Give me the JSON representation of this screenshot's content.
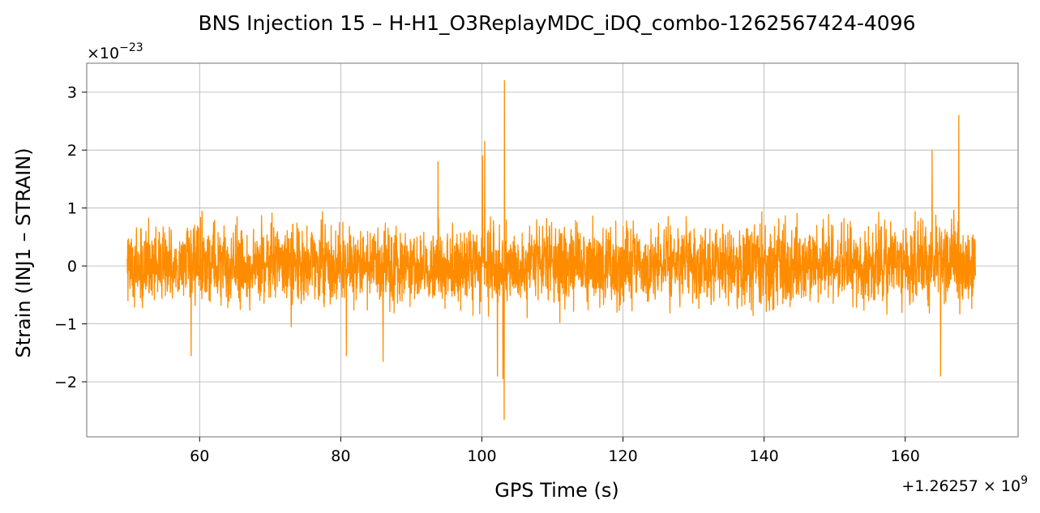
{
  "chart_data": {
    "type": "line",
    "title": "BNS Injection 15 – H-H1_O3ReplayMDC_iDQ_combo-1262567424-4096",
    "xlabel": "GPS Time (s)",
    "ylabel": "Strain (INJ1 – STRAIN)",
    "x_offset_label": "+1.26257 × 10",
    "x_offset_exponent": "9",
    "y_multiplier_label": "×10",
    "y_multiplier_exponent": "−23",
    "xlim": [
      44,
      176
    ],
    "ylim": [
      -2.95,
      3.5
    ],
    "x_ticks": [
      {
        "value": 60,
        "label": "60"
      },
      {
        "value": 80,
        "label": "80"
      },
      {
        "value": 100,
        "label": "100"
      },
      {
        "value": 120,
        "label": "120"
      },
      {
        "value": 140,
        "label": "140"
      },
      {
        "value": 160,
        "label": "160"
      }
    ],
    "y_ticks": [
      {
        "value": -2,
        "label": "−2"
      },
      {
        "value": -1,
        "label": "−1"
      },
      {
        "value": 0,
        "label": "0"
      },
      {
        "value": 1,
        "label": "1"
      },
      {
        "value": 2,
        "label": "2"
      },
      {
        "value": 3,
        "label": "3"
      }
    ],
    "grid": true,
    "series": [
      {
        "color": "#ff8c00",
        "x_range": [
          49.7,
          170.0
        ],
        "typical_envelope": [
          -1.0,
          1.2
        ],
        "peaks": [
          {
            "x": 58.8,
            "y": 1.5
          },
          {
            "x": 80.8,
            "y": 1.65
          },
          {
            "x": 93.8,
            "y": 1.8
          },
          {
            "x": 100.1,
            "y": 1.9
          },
          {
            "x": 100.4,
            "y": 2.15
          },
          {
            "x": 103.2,
            "y": 3.2
          },
          {
            "x": 103.15,
            "y": -2.65
          },
          {
            "x": 102.2,
            "y": -1.9
          },
          {
            "x": 103.0,
            "y": -1.95
          },
          {
            "x": 163.8,
            "y": 2.0
          },
          {
            "x": 167.6,
            "y": 2.6
          },
          {
            "x": 165.0,
            "y": -1.9
          },
          {
            "x": 58.8,
            "y": -1.55
          },
          {
            "x": 80.8,
            "y": -1.55
          },
          {
            "x": 86.0,
            "y": -1.65
          }
        ]
      }
    ]
  }
}
